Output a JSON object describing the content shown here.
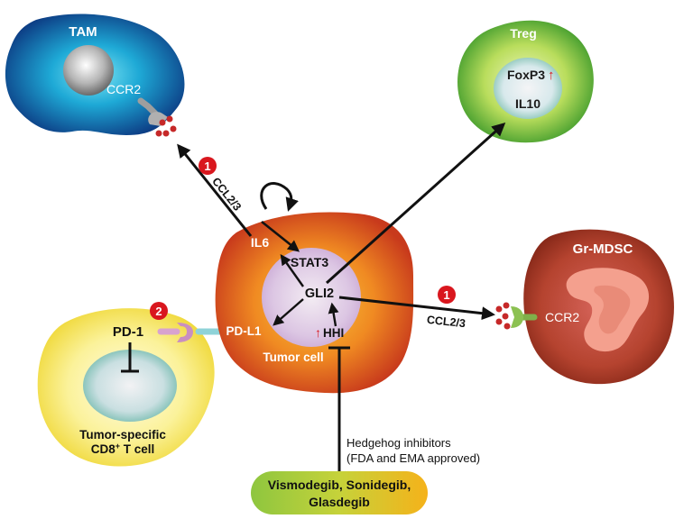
{
  "cells": {
    "tam": {
      "title": "TAM",
      "receptor": "CCR2"
    },
    "treg": {
      "title": "Treg",
      "marker1": "FoxP3",
      "marker2": "IL10",
      "up_arrow": "↑"
    },
    "mdsc": {
      "title": "Gr-MDSC",
      "receptor": "CCR2"
    },
    "tcell": {
      "receptor": "PD-1",
      "name_line1": "Tumor-specific",
      "name_line2_pre": "CD8",
      "name_line2_sup": "+",
      "name_line2_post": " T cell"
    },
    "tumor": {
      "name": "Tumor cell",
      "il6": "IL6",
      "stat3": "STAT3",
      "gli2": "GLI2",
      "pdl1": "PD-L1",
      "hhi": "HHI",
      "up_arrow": "↑"
    }
  },
  "edges": {
    "ccl_tam": "CCL2/3",
    "ccl_mdsc": "CCL2/3"
  },
  "badges": {
    "b1a": "1",
    "b1b": "1",
    "b2": "2"
  },
  "inhibitor": {
    "note_line1": "Hedgehog inhibitors",
    "note_line2": "(FDA and EMA approved)",
    "drugs_line1": "Vismodegib, Sonidegib,",
    "drugs_line2": "Glasdegib"
  },
  "colors": {
    "tam": "#1a5ea8",
    "treg": "#5cb83a",
    "mdsc": "#a8352a",
    "tcell": "#f3e35a",
    "tumor": "#e0561e",
    "badge": "#d9171e",
    "chemokine": "#c62828"
  }
}
